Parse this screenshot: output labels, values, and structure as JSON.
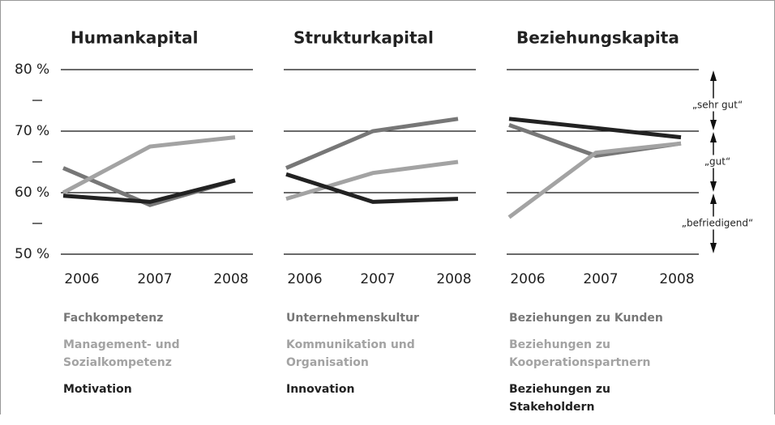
{
  "chart_data": [
    {
      "type": "line",
      "title": "Humankapital",
      "categories": [
        "2006",
        "2007",
        "2008"
      ],
      "ylim": [
        50,
        80
      ],
      "yticks": [
        {
          "value": 50,
          "label": "50 %"
        },
        {
          "value": 60,
          "label": "60 %"
        },
        {
          "value": 70,
          "label": "70 %"
        },
        {
          "value": 80,
          "label": "80 %"
        }
      ],
      "minor_yticks": [
        55,
        65,
        75
      ],
      "series": [
        {
          "name": "Fachkompetenz",
          "color": "#777777",
          "values": [
            64,
            58,
            62
          ]
        },
        {
          "name": "Management- und Sozialkompetenz",
          "color": "#a3a3a3",
          "values": [
            60,
            67.5,
            69
          ]
        },
        {
          "name": "Motivation",
          "color": "#222222",
          "values": [
            59.5,
            58.5,
            62
          ]
        }
      ]
    },
    {
      "type": "line",
      "title": "Strukturkapital",
      "categories": [
        "2006",
        "2007",
        "2008"
      ],
      "ylim": [
        50,
        80
      ],
      "series": [
        {
          "name": "Unternehmenskultur",
          "color": "#777777",
          "values": [
            64,
            70,
            72
          ]
        },
        {
          "name": "Kommunikation und Organisation",
          "color": "#a3a3a3",
          "values": [
            59,
            63.2,
            65
          ]
        },
        {
          "name": "Innovation",
          "color": "#222222",
          "values": [
            63,
            58.5,
            59
          ]
        }
      ]
    },
    {
      "type": "line",
      "title": "Beziehungskapita",
      "categories": [
        "2006",
        "2007",
        "2008"
      ],
      "ylim": [
        50,
        80
      ],
      "series": [
        {
          "name": "Beziehungen zu Kunden",
          "color": "#777777",
          "values": [
            71,
            66,
            68
          ]
        },
        {
          "name": "Beziehungen zu Kooperationspartnern",
          "color": "#a3a3a3",
          "values": [
            56,
            66.5,
            68
          ]
        },
        {
          "name": "Beziehungen zu Stakeholdern",
          "color": "#222222",
          "values": [
            72,
            70.5,
            69
          ]
        }
      ],
      "annotations": [
        {
          "text": "„sehr gut“",
          "from": 80,
          "to": 70
        },
        {
          "text": "„gut“",
          "from": 70,
          "to": 60
        },
        {
          "text": "„befriedigend“",
          "from": 60,
          "to": 50
        }
      ]
    }
  ]
}
